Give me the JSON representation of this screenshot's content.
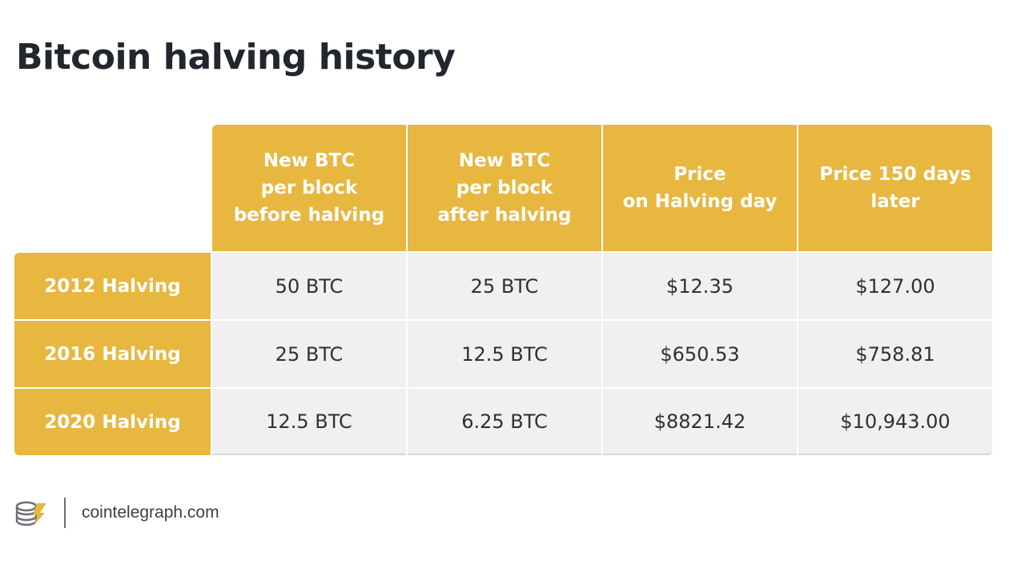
{
  "title": "Bitcoin halving history",
  "footer": {
    "site": "cointelegraph.com"
  },
  "chart_data": {
    "type": "table",
    "title": "Bitcoin halving history",
    "columns": [
      "New BTC\nper block\nbefore halving",
      "New BTC\nper block\nafter halving",
      "Price\non Halving day",
      "Price 150 days\nlater"
    ],
    "rows": [
      {
        "label": "2012 Halving",
        "values": [
          "50 BTC",
          "25 BTC",
          "$12.35",
          "$127.00"
        ]
      },
      {
        "label": "2016 Halving",
        "values": [
          "25 BTC",
          "12.5 BTC",
          "$650.53",
          "$758.81"
        ]
      },
      {
        "label": "2020 Halving",
        "values": [
          "12.5 BTC",
          "6.25 BTC",
          "$8821.42",
          "$10,943.00"
        ]
      }
    ]
  },
  "colors": {
    "accent": "#e8b740",
    "cell_bg": "#f0f0f0",
    "title": "#22272e"
  },
  "icons": {
    "logo": "cointelegraph-logo-icon"
  }
}
